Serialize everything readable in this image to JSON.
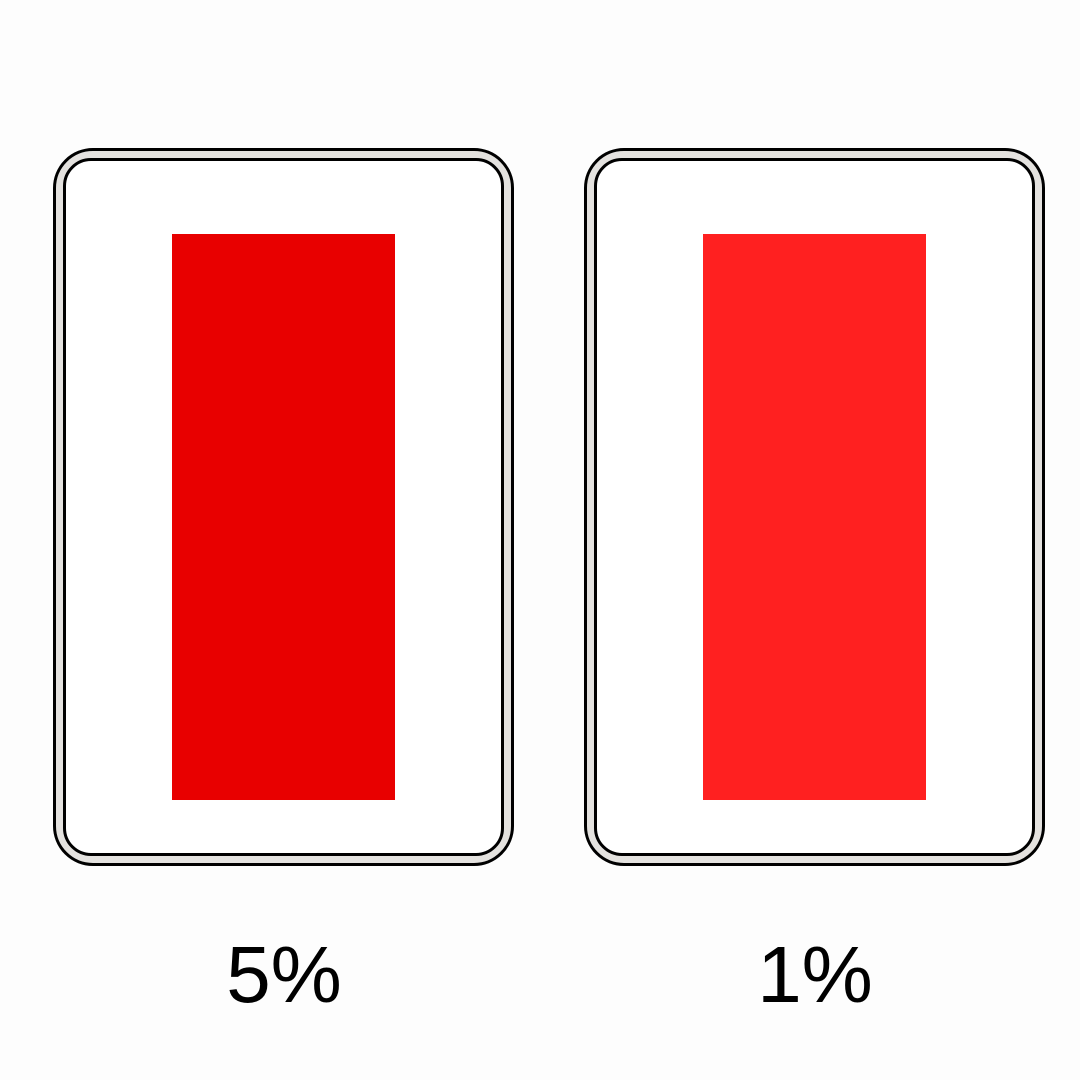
{
  "panels": [
    {
      "label": "5%",
      "color": "#e80000"
    },
    {
      "label": "1%",
      "color": "#ff2020"
    }
  ]
}
